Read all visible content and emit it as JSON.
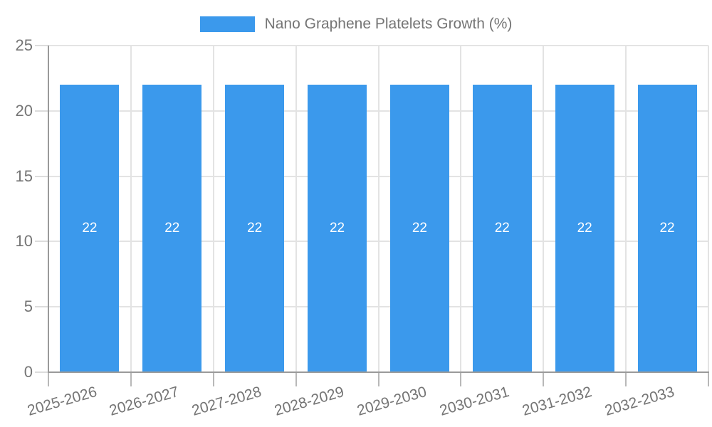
{
  "chart_data": {
    "type": "bar",
    "title": "",
    "legend": {
      "label": "Nano Graphene Platelets Growth (%)",
      "position": "top-center"
    },
    "categories": [
      "2025-2026",
      "2026-2027",
      "2027-2028",
      "2028-2029",
      "2029-2030",
      "2030-2031",
      "2031-2032",
      "2032-2033"
    ],
    "series": [
      {
        "name": "Nano Graphene Platelets Growth (%)",
        "values": [
          22,
          22,
          22,
          22,
          22,
          22,
          22,
          22
        ]
      }
    ],
    "bar_value_labels": [
      "22",
      "22",
      "22",
      "22",
      "22",
      "22",
      "22",
      "22"
    ],
    "xlabel": "",
    "ylabel": "",
    "ylim": [
      0,
      25
    ],
    "yticks": [
      0,
      5,
      10,
      15,
      20,
      25
    ],
    "grid": true,
    "colors": {
      "bar": "#3B99EC",
      "label_text": "#757575",
      "bar_value_text": "#ffffff",
      "gridline": "#e3e3e3",
      "y_tick": "#dcdcdc",
      "x_tick": "#b8b8b8",
      "axis": "#9a9a9a",
      "background": "#ffffff"
    }
  }
}
